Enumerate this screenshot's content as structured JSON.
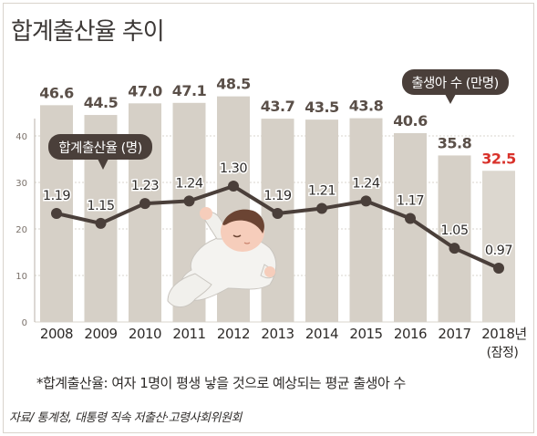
{
  "title": "합계출산율 추이",
  "legend": {
    "bars_label": "출생아 수 (만명)",
    "line_label": "합계출산율 (명)"
  },
  "footnote": "*합계출산율: 여자 1명이 평생 낳을 것으로 예상되는 평균 출생아 수",
  "source": "자료/ 통계청, 대통령 직속 저출산·고령사회위원회",
  "colors": {
    "bar": "#d6d0c7",
    "bar_last": "#dcd7cf",
    "line": "#4a3f3a",
    "label": "#5a4f48",
    "highlight": "#d9322b",
    "badge": "#4a3f3a"
  },
  "chart_data": {
    "type": "bar",
    "categories": [
      "2008",
      "2009",
      "2010",
      "2011",
      "2012",
      "2013",
      "2014",
      "2015",
      "2016",
      "2017",
      "2018년"
    ],
    "category_sublabels": [
      "",
      "",
      "",
      "",
      "",
      "",
      "",
      "",
      "",
      "",
      "(잠정)"
    ],
    "ylim": [
      0,
      50
    ],
    "yticks": [
      0,
      10,
      20,
      30,
      40
    ],
    "bars": {
      "name": "출생아 수 (만명)",
      "values": [
        46.6,
        44.5,
        47.0,
        47.1,
        48.5,
        43.7,
        43.5,
        43.8,
        40.6,
        35.8,
        32.5
      ],
      "labels": [
        "46.6",
        "44.5",
        "47.0",
        "47.1",
        "48.5",
        "43.7",
        "43.5",
        "43.8",
        "40.6",
        "35.8",
        "32.5"
      ]
    },
    "line": {
      "name": "합계출산율 (명)",
      "values": [
        1.19,
        1.15,
        1.23,
        1.24,
        1.3,
        1.19,
        1.21,
        1.24,
        1.17,
        1.05,
        0.97
      ],
      "labels": [
        "1.19",
        "1.15",
        "1.23",
        "1.24",
        "1.30",
        "1.19",
        "1.21",
        "1.24",
        "1.17",
        "1.05",
        "0.97"
      ]
    }
  }
}
